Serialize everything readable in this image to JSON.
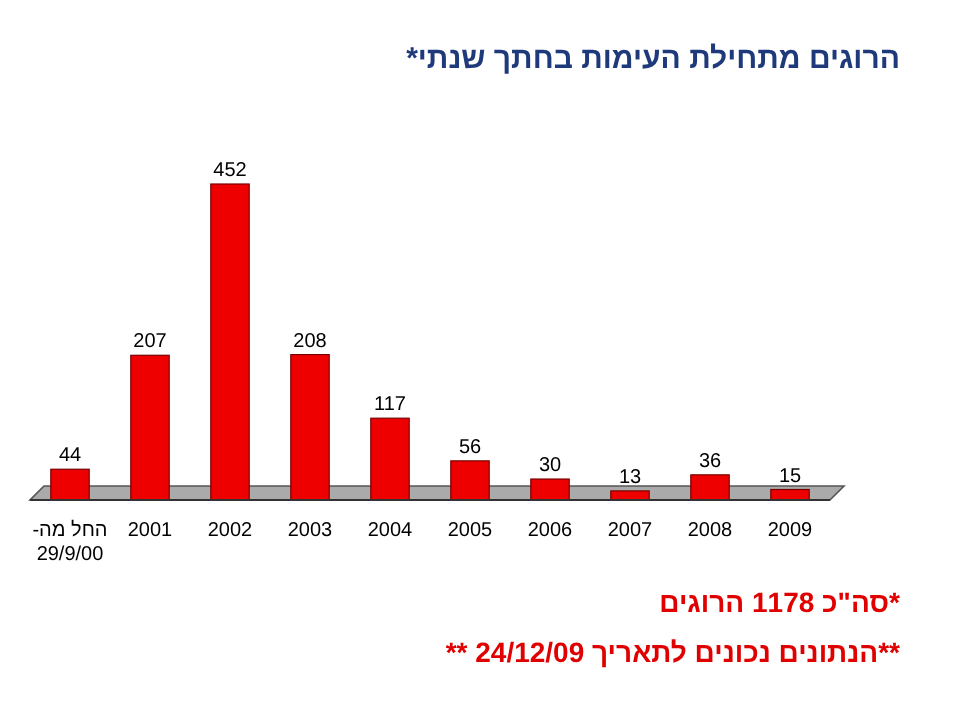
{
  "chart_data": {
    "type": "bar",
    "title": "הרוגים מתחילת העימות בחתך שנתי*",
    "categories": [
      "החל מה-\n29/9/00",
      "2001",
      "2002",
      "2003",
      "2004",
      "2005",
      "2006",
      "2007",
      "2008",
      "2009"
    ],
    "values": [
      44,
      207,
      452,
      208,
      117,
      56,
      30,
      13,
      36,
      15
    ],
    "color": "#ee0000",
    "data_labels": true,
    "annotations": [
      "*סה\"כ 1178 הרוגים",
      "**הנתונים נכונים לתאריך 24/12/09 **"
    ]
  }
}
